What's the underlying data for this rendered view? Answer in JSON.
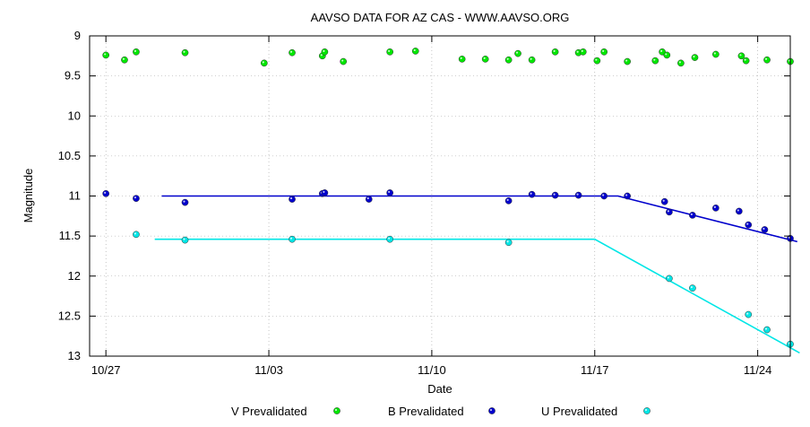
{
  "chart_data": {
    "type": "scatter",
    "title": "AAVSO DATA FOR AZ CAS - WWW.AAVSO.ORG",
    "xlabel": "Date",
    "ylabel": "Magnitude",
    "y_inverted": true,
    "ylim": [
      9,
      13
    ],
    "xlim": [
      -0.7,
      29.4
    ],
    "x_ticks": [
      {
        "x": 0,
        "label": "10/27"
      },
      {
        "x": 7,
        "label": "11/03"
      },
      {
        "x": 14,
        "label": "11/10"
      },
      {
        "x": 21,
        "label": "11/17"
      },
      {
        "x": 28,
        "label": "11/24"
      }
    ],
    "y_ticks": [
      {
        "y": 9,
        "label": "9"
      },
      {
        "y": 9.5,
        "label": "9.5"
      },
      {
        "y": 10,
        "label": "10"
      },
      {
        "y": 10.5,
        "label": "10.5"
      },
      {
        "y": 11,
        "label": "11"
      },
      {
        "y": 11.5,
        "label": "11.5"
      },
      {
        "y": 12,
        "label": "12"
      },
      {
        "y": 12.5,
        "label": "12.5"
      },
      {
        "y": 13,
        "label": "13"
      }
    ],
    "grid": true,
    "legend_position": "bottom",
    "series": [
      {
        "name": "V Prevalidated",
        "color": "#00e600",
        "x": [
          0.0,
          0.8,
          1.3,
          3.4,
          6.8,
          8.0,
          9.3,
          9.4,
          10.2,
          12.2,
          13.3,
          15.3,
          16.3,
          17.3,
          17.7,
          18.3,
          19.3,
          20.3,
          20.5,
          21.1,
          21.4,
          22.4,
          23.6,
          23.9,
          24.1,
          24.7,
          25.3,
          26.2,
          27.3,
          27.5,
          28.4,
          29.4
        ],
        "y": [
          9.24,
          9.3,
          9.2,
          9.21,
          9.34,
          9.21,
          9.25,
          9.2,
          9.32,
          9.2,
          9.19,
          9.29,
          9.29,
          9.3,
          9.22,
          9.3,
          9.2,
          9.21,
          9.2,
          9.31,
          9.2,
          9.32,
          9.31,
          9.2,
          9.24,
          9.34,
          9.27,
          9.23,
          9.25,
          9.31,
          9.3,
          9.32
        ]
      },
      {
        "name": "B Prevalidated",
        "color": "#0000cc",
        "x": [
          0.0,
          1.3,
          3.4,
          8.0,
          9.3,
          9.4,
          11.3,
          12.2,
          17.3,
          18.3,
          19.3,
          20.3,
          21.4,
          22.4,
          24.0,
          24.2,
          25.2,
          26.2,
          27.2,
          27.6,
          28.3,
          29.4
        ],
        "y": [
          10.97,
          11.03,
          11.08,
          11.04,
          10.97,
          10.96,
          11.04,
          10.96,
          11.06,
          10.98,
          10.99,
          10.99,
          11.0,
          11.0,
          11.07,
          11.2,
          11.24,
          11.15,
          11.19,
          11.36,
          11.42,
          11.53
        ]
      },
      {
        "name": "U Prevalidated",
        "color": "#00e6e6",
        "x": [
          1.3,
          3.4,
          8.0,
          12.2,
          17.3,
          24.2,
          25.2,
          27.6,
          28.4,
          29.4
        ],
        "y": [
          11.48,
          11.55,
          11.54,
          11.54,
          11.58,
          12.03,
          12.15,
          12.48,
          12.67,
          12.85
        ]
      }
    ],
    "fit_lines": [
      {
        "color": "#0000cc",
        "points": [
          [
            2.4,
            11.0
          ],
          [
            22.0,
            11.0
          ],
          [
            29.7,
            11.57
          ]
        ]
      },
      {
        "color": "#00e6e6",
        "points": [
          [
            2.1,
            11.54
          ],
          [
            21.0,
            11.54
          ],
          [
            29.8,
            12.96
          ]
        ]
      }
    ]
  }
}
